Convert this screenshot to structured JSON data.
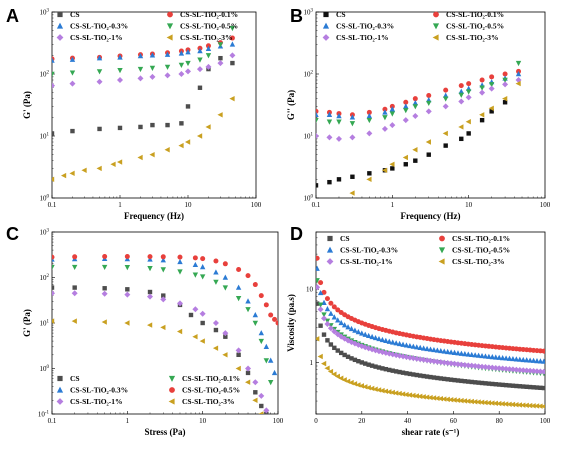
{
  "chart_data": [
    {
      "panel": "A",
      "type": "scatter",
      "xlabel": "Frequency (Hz)",
      "ylabel": "G' (Pa)",
      "xscale": "log",
      "yscale": "log",
      "xlim": [
        0.1,
        100
      ],
      "ylim": [
        1,
        1000
      ],
      "x_ticks": [
        "0.1",
        "1",
        "10",
        "100"
      ],
      "y_ticks": [
        "10^0",
        "10^1",
        "10^2",
        "10^3"
      ],
      "legend_placement": "top",
      "series": [
        {
          "name": "CS",
          "marker": "square",
          "color": "#4d4d4d",
          "x": [
            0.1,
            0.2,
            0.5,
            1,
            2,
            3,
            5,
            8,
            10,
            15,
            20,
            30,
            45
          ],
          "y": [
            11,
            12,
            13,
            13.5,
            14,
            15,
            15,
            16,
            30,
            60,
            120,
            180,
            150
          ]
        },
        {
          "name": "CS-SL-TiO₂-0.1%",
          "marker": "circle",
          "color": "#e8403c",
          "x": [
            0.1,
            0.2,
            0.5,
            1,
            2,
            3,
            5,
            8,
            10,
            15,
            20,
            30,
            45
          ],
          "y": [
            175,
            180,
            185,
            195,
            205,
            210,
            220,
            235,
            245,
            260,
            285,
            320,
            380
          ]
        },
        {
          "name": "CS-SL-TiO₂-0.3%",
          "marker": "triangle-up",
          "color": "#2b7bd4",
          "x": [
            0.1,
            0.2,
            0.5,
            1,
            2,
            3,
            5,
            8,
            10,
            15,
            20,
            30,
            45
          ],
          "y": [
            165,
            170,
            180,
            185,
            195,
            200,
            205,
            215,
            225,
            235,
            255,
            280,
            300
          ]
        },
        {
          "name": "CS-SL-TiO₂-0.5%",
          "marker": "triangle-down",
          "color": "#35a853",
          "x": [
            0.1,
            0.2,
            0.5,
            1,
            2,
            3,
            5,
            8,
            10,
            15,
            20,
            30,
            45
          ],
          "y": [
            100,
            105,
            110,
            115,
            120,
            125,
            130,
            140,
            150,
            170,
            200,
            300,
            550
          ]
        },
        {
          "name": "CS-SL-TiO₂-1%",
          "marker": "diamond",
          "color": "#b57ee0",
          "x": [
            0.1,
            0.2,
            0.5,
            1,
            2,
            3,
            5,
            8,
            10,
            15,
            20,
            30,
            45
          ],
          "y": [
            65,
            70,
            75,
            80,
            85,
            90,
            95,
            100,
            110,
            120,
            130,
            150,
            200
          ]
        },
        {
          "name": "CS-SL-TiO₂-3%",
          "marker": "triangle-left",
          "color": "#c9a020",
          "x": [
            0.1,
            0.15,
            0.2,
            0.3,
            0.5,
            0.8,
            1,
            2,
            3,
            5,
            8,
            10,
            15,
            20,
            30,
            45
          ],
          "y": [
            2,
            2.3,
            2.5,
            2.8,
            3,
            3.5,
            3.8,
            4.5,
            5,
            6,
            7,
            8,
            10,
            14,
            22,
            40
          ]
        }
      ]
    },
    {
      "panel": "B",
      "type": "scatter",
      "xlabel": "Frequency (Hz)",
      "ylabel": "G'' (Pa)",
      "xscale": "log",
      "yscale": "log",
      "xlim": [
        0.1,
        100
      ],
      "ylim": [
        1,
        1000
      ],
      "x_ticks": [
        "0.1",
        "1",
        "10",
        "100"
      ],
      "y_ticks": [
        "10^0",
        "10^1",
        "10^2",
        "10^3"
      ],
      "legend_placement": "top",
      "series": [
        {
          "name": "CS",
          "marker": "square",
          "color": "#111111",
          "x": [
            0.1,
            0.15,
            0.2,
            0.3,
            0.5,
            0.8,
            1,
            1.5,
            2,
            3,
            5,
            8,
            10,
            15,
            20,
            30
          ],
          "y": [
            1.6,
            1.8,
            2,
            2.2,
            2.5,
            2.8,
            3,
            3.5,
            4,
            5,
            7,
            9,
            11,
            18,
            25,
            35
          ]
        },
        {
          "name": "CS-SL-TiO₂-0.1%",
          "marker": "circle",
          "color": "#e8403c",
          "x": [
            0.1,
            0.15,
            0.2,
            0.3,
            0.5,
            0.8,
            1,
            1.5,
            2,
            3,
            5,
            8,
            10,
            15,
            20,
            30,
            45
          ],
          "y": [
            25,
            24,
            23,
            22,
            24,
            27,
            30,
            35,
            40,
            45,
            55,
            65,
            70,
            80,
            90,
            100,
            110
          ]
        },
        {
          "name": "CS-SL-TiO₂-0.3%",
          "marker": "triangle-up",
          "color": "#2b7bd4",
          "x": [
            0.1,
            0.15,
            0.2,
            0.3,
            0.5,
            0.8,
            1,
            1.5,
            2,
            3,
            5,
            8,
            10,
            15,
            20,
            30,
            45
          ],
          "y": [
            22,
            22,
            21,
            20,
            21,
            24,
            27,
            30,
            34,
            38,
            45,
            52,
            58,
            66,
            74,
            85,
            100
          ]
        },
        {
          "name": "CS-SL-TiO₂-0.5%",
          "marker": "triangle-down",
          "color": "#35a853",
          "x": [
            0.1,
            0.15,
            0.2,
            0.3,
            0.5,
            0.8,
            1,
            1.5,
            2,
            3,
            5,
            8,
            10,
            15,
            20,
            30,
            45
          ],
          "y": [
            18,
            17,
            17,
            16,
            18,
            20,
            23,
            26,
            30,
            34,
            40,
            46,
            52,
            60,
            68,
            80,
            150
          ]
        },
        {
          "name": "CS-SL-TiO₂-1%",
          "marker": "diamond",
          "color": "#b57ee0",
          "x": [
            0.1,
            0.15,
            0.2,
            0.3,
            0.5,
            0.8,
            1,
            1.5,
            2,
            3,
            5,
            8,
            10,
            15,
            20,
            30,
            45
          ],
          "y": [
            10,
            9.5,
            9,
            9.5,
            11,
            13,
            15,
            18,
            21,
            25,
            30,
            36,
            42,
            50,
            58,
            68,
            80
          ]
        },
        {
          "name": "CS-SL-TiO₂-3%",
          "marker": "triangle-left",
          "color": "#c9a020",
          "x": [
            0.3,
            0.5,
            0.8,
            1,
            1.5,
            2,
            3,
            5,
            8,
            10,
            15,
            20,
            30,
            45
          ],
          "y": [
            1.2,
            2,
            2.8,
            3.5,
            4.5,
            6,
            8,
            11,
            14,
            17,
            22,
            28,
            40,
            70
          ]
        }
      ]
    },
    {
      "panel": "C",
      "type": "scatter",
      "xlabel": "Stress (Pa)",
      "ylabel": "G' (Pa)",
      "xscale": "log",
      "yscale": "log",
      "xlim": [
        0.1,
        100
      ],
      "ylim": [
        0.1,
        1000
      ],
      "x_ticks": [
        "0.1",
        "1",
        "10",
        "100"
      ],
      "y_ticks": [
        "10^-1",
        "10^0",
        "10^1",
        "10^2",
        "10^3"
      ],
      "legend_placement": "bottom",
      "series": [
        {
          "name": "CS",
          "marker": "square",
          "color": "#4d4d4d",
          "x": [
            0.1,
            0.2,
            0.5,
            1,
            2,
            3,
            5,
            7,
            10,
            15,
            20,
            30,
            40,
            50,
            60,
            70
          ],
          "y": [
            60,
            60,
            58,
            55,
            48,
            40,
            25,
            15,
            10,
            7,
            5,
            2,
            0.8,
            0.3,
            0.15,
            0.1
          ]
        },
        {
          "name": "CS-SL-TiO₂-0.1%",
          "marker": "triangle-down",
          "color": "#35a853",
          "x": [
            0.1,
            0.2,
            0.5,
            1,
            2,
            3,
            5,
            8,
            10,
            15,
            20,
            30,
            40,
            50,
            60,
            70,
            80
          ],
          "y": [
            170,
            170,
            170,
            168,
            160,
            150,
            135,
            115,
            105,
            80,
            60,
            35,
            20,
            10,
            4,
            1.5,
            0.5
          ]
        },
        {
          "name": "CS-SL-TiO₂-0.3%",
          "marker": "triangle-up",
          "color": "#2b7bd4",
          "x": [
            0.1,
            0.2,
            0.5,
            1,
            2,
            3,
            5,
            8,
            10,
            15,
            20,
            30,
            40,
            50,
            60,
            70,
            80,
            90
          ],
          "y": [
            250,
            255,
            258,
            255,
            250,
            240,
            220,
            190,
            170,
            130,
            100,
            60,
            30,
            15,
            6,
            3,
            1.5,
            0.8
          ]
        },
        {
          "name": "CS-SL-TiO₂-0.5%",
          "marker": "circle",
          "color": "#e8403c",
          "x": [
            0.1,
            0.2,
            0.5,
            1,
            2,
            3,
            5,
            8,
            10,
            15,
            20,
            30,
            40,
            50,
            60,
            70,
            80,
            90,
            100
          ],
          "y": [
            280,
            285,
            290,
            290,
            288,
            285,
            280,
            270,
            260,
            230,
            200,
            150,
            110,
            70,
            40,
            25,
            15,
            12,
            10
          ]
        },
        {
          "name": "CS-SL-TiO₂-1%",
          "marker": "diamond",
          "color": "#b57ee0",
          "x": [
            0.1,
            0.2,
            0.5,
            1,
            2,
            3,
            5,
            8,
            10,
            15,
            20,
            30,
            40,
            50,
            60,
            70
          ],
          "y": [
            45,
            45,
            44,
            42,
            38,
            33,
            27,
            20,
            16,
            10,
            6,
            2.5,
            1,
            0.5,
            0.25,
            0.12
          ]
        },
        {
          "name": "CS-SL-TiO₂-3%",
          "marker": "triangle-left",
          "color": "#c9a020",
          "x": [
            0.1,
            0.2,
            0.5,
            1,
            2,
            3,
            5,
            8,
            10,
            15,
            20,
            30,
            40,
            50,
            60
          ],
          "y": [
            11,
            11,
            10.5,
            10,
            9,
            8,
            6.5,
            5,
            4,
            2.8,
            2,
            1,
            0.5,
            0.2,
            0.1
          ]
        }
      ]
    },
    {
      "panel": "D",
      "type": "scatter",
      "xlabel": "shear rate (s⁻¹)",
      "ylabel": "Viscosity (pa.s)",
      "xscale": "linear",
      "yscale": "log",
      "xlim": [
        0,
        100
      ],
      "ylim": [
        0.2,
        60
      ],
      "x_ticks": [
        "0",
        "20",
        "40",
        "60",
        "80",
        "100"
      ],
      "y_ticks": [
        "1",
        "10"
      ],
      "legend_placement": "top",
      "series": [
        {
          "name": "CS",
          "marker": "square",
          "color": "#4d4d4d",
          "a": 4.5,
          "b": -0.5
        },
        {
          "name": "CS-SL-TiO₂-0.1%",
          "marker": "circle",
          "color": "#e8403c",
          "a": 18,
          "b": -0.55
        },
        {
          "name": "CS-SL-TiO₂-0.3%",
          "marker": "triangle-up",
          "color": "#2b7bd4",
          "a": 13,
          "b": -0.55
        },
        {
          "name": "CS-SL-TiO₂-0.5%",
          "marker": "triangle-down",
          "color": "#35a853",
          "a": 9,
          "b": -0.55
        },
        {
          "name": "CS-SL-TiO₂-1%",
          "marker": "diamond",
          "color": "#b57ee0",
          "a": 7.5,
          "b": -0.5
        },
        {
          "name": "CS-SL-TiO₂-3%",
          "marker": "triangle-left",
          "color": "#c9a020",
          "a": 1.6,
          "b": -0.4
        }
      ]
    }
  ]
}
